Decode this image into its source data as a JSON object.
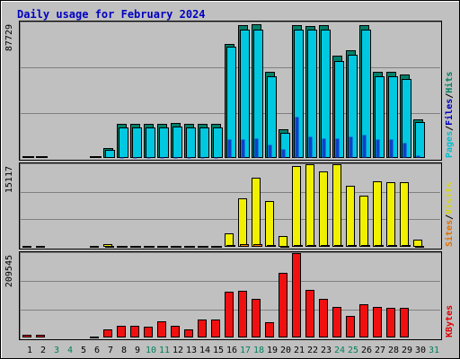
{
  "chart_data": {
    "type": "bar",
    "title": "Daily usage for February 2024",
    "x": [
      "1",
      "2",
      "3",
      "4",
      "5",
      "6",
      "7",
      "8",
      "9",
      "10",
      "11",
      "12",
      "13",
      "14",
      "15",
      "16",
      "17",
      "18",
      "19",
      "20",
      "21",
      "22",
      "23",
      "24",
      "25",
      "26",
      "27",
      "28",
      "29",
      "30",
      "31"
    ],
    "weekend_days": [
      "3",
      "4",
      "10",
      "11",
      "17",
      "18",
      "24",
      "25",
      "31"
    ],
    "panels": [
      {
        "name": "hits-files-pages",
        "ymax_label": "87729",
        "ymax": 87729,
        "legend": [
          "Pages",
          "/",
          "Files",
          "/",
          "Hits"
        ],
        "legend_colors": [
          "#00c0d0",
          "#000000",
          "#0000c0",
          "#000000",
          "#008060"
        ],
        "series": [
          {
            "name": "Hits",
            "color": "#00806a",
            "values": [
              1200,
              1200,
              0,
              0,
              0,
              1200,
              6500,
              22000,
              22000,
              22000,
              22000,
              22500,
              22000,
              22000,
              22000,
              74000,
              86000,
              86500,
              56000,
              18500,
              86000,
              85500,
              86000,
              66000,
              69500,
              86000,
              56000,
              56000,
              54000,
              25000,
              0
            ]
          },
          {
            "name": "Files",
            "color": "#00c8e0",
            "values": [
              1200,
              1200,
              0,
              0,
              0,
              1200,
              5200,
              20000,
              20000,
              20000,
              20000,
              20500,
              20000,
              20000,
              20000,
              72000,
              83000,
              83000,
              53000,
              16500,
              83000,
              83000,
              83000,
              63000,
              67000,
              83000,
              53000,
              53000,
              51000,
              23000,
              0
            ]
          },
          {
            "name": "Pages",
            "color": "#1040c8",
            "values": [
              0,
              0,
              0,
              0,
              0,
              0,
              0,
              200,
              200,
              200,
              200,
              200,
              200,
              200,
              200,
              12000,
              12000,
              13000,
              9000,
              6000,
              27000,
              14000,
              13000,
              13000,
              14000,
              15000,
              12000,
              12000,
              10000,
              2000,
              0
            ]
          }
        ]
      },
      {
        "name": "visits-sites",
        "ymax_label": "15117",
        "ymax": 15117,
        "legend": [
          "Sites",
          "/",
          "Visits"
        ],
        "legend_colors": [
          "#e07000",
          "#000000",
          "#d8d800"
        ],
        "series": [
          {
            "name": "Visits",
            "color": "#f0f000",
            "values": [
              200,
              200,
              0,
              0,
              0,
              200,
              550,
              200,
              200,
              200,
              200,
              200,
              200,
              200,
              200,
              2500,
              8800,
              12700,
              8300,
              1900,
              14800,
              15100,
              13800,
              15100,
              11100,
              9400,
              12000,
              11800,
              11800,
              1300,
              0
            ]
          },
          {
            "name": "Sites",
            "color": "#ff8000",
            "values": [
              0,
              0,
              0,
              0,
              0,
              0,
              150,
              50,
              50,
              50,
              50,
              50,
              50,
              50,
              50,
              250,
              500,
              500,
              400,
              200,
              400,
              400,
              400,
              400,
              400,
              300,
              400,
              400,
              400,
              200,
              0
            ]
          }
        ]
      },
      {
        "name": "kbytes",
        "ymax_label": "209545",
        "ymax": 209545,
        "legend": [
          "KBytes"
        ],
        "legend_colors": [
          "#e00000"
        ],
        "series": [
          {
            "name": "KBytes",
            "color": "#f01010",
            "values": [
              7000,
              7000,
              0,
              0,
              0,
              2000,
              21000,
              28000,
              28000,
              26000,
              40000,
              30000,
              21000,
              45000,
              45000,
              114000,
              117000,
              96000,
              38000,
              160000,
              209545,
              118000,
              96000,
              76000,
              54000,
              82000,
              76000,
              74000,
              74000,
              0,
              0
            ]
          }
        ]
      }
    ]
  }
}
